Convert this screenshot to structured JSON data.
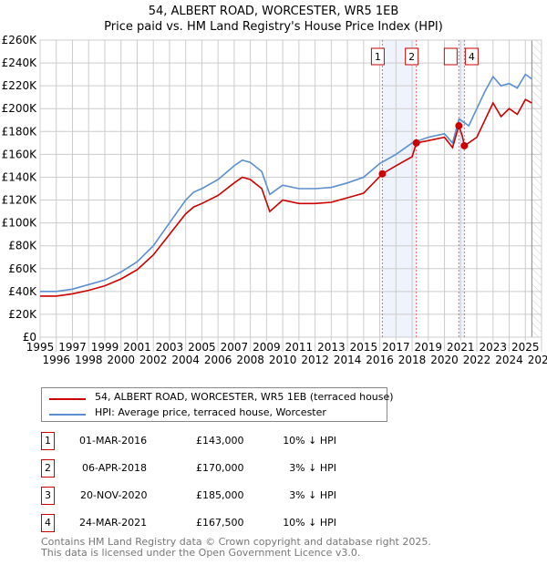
{
  "title": "54, ALBERT ROAD, WORCESTER, WR5 1EB",
  "subtitle": "Price paid vs. HM Land Registry's House Price Index (HPI)",
  "legend": {
    "property": "54, ALBERT ROAD, WORCESTER, WR5 1EB (terraced house)",
    "hpi": "HPI: Average price, terraced house, Worcester"
  },
  "sales": [
    {
      "n": "1",
      "date": "01-MAR-2016",
      "price": "£143,000",
      "hpi": "10% ↓ HPI",
      "x": 2016.16,
      "y": 143000
    },
    {
      "n": "2",
      "date": "06-APR-2018",
      "price": "£170,000",
      "hpi": "3% ↓ HPI",
      "x": 2018.26,
      "y": 170000
    },
    {
      "n": "3",
      "date": "20-NOV-2020",
      "price": "£185,000",
      "hpi": "3% ↓ HPI",
      "x": 2020.89,
      "y": 185000
    },
    {
      "n": "4",
      "date": "24-MAR-2021",
      "price": "£167,500",
      "hpi": "10% ↓ HPI",
      "x": 2021.23,
      "y": 167500
    }
  ],
  "footer": [
    "Contains HM Land Registry data © Crown copyright and database right 2025.",
    "This data is licensed under the Open Government Licence v3.0."
  ],
  "colors": {
    "property": "#cc0000",
    "hpi": "#5b8fd0"
  },
  "chart_data": {
    "type": "line",
    "xlim": [
      1995,
      2026
    ],
    "ylim": [
      0,
      260000
    ],
    "xticks": [
      "1995",
      "1996",
      "1997",
      "1998",
      "1999",
      "2000",
      "2001",
      "2002",
      "2003",
      "2004",
      "2005",
      "2006",
      "2007",
      "2008",
      "2009",
      "2010",
      "2011",
      "2012",
      "2013",
      "2014",
      "2015",
      "2016",
      "2017",
      "2018",
      "2019",
      "2020",
      "2021",
      "2022",
      "2023",
      "2024",
      "2025",
      "2026"
    ],
    "yticks": [
      "£0",
      "£20K",
      "£40K",
      "£60K",
      "£80K",
      "£100K",
      "£120K",
      "£140K",
      "£160K",
      "£180K",
      "£200K",
      "£220K",
      "£240K",
      "£260K"
    ],
    "data_end": 2025.4,
    "series": [
      {
        "name": "HPI",
        "x": [
          1995,
          1996,
          1997,
          1998,
          1999,
          2000,
          2001,
          2002,
          2003,
          2004,
          2004.5,
          2005,
          2006,
          2007,
          2007.5,
          2008,
          2008.7,
          2009.2,
          2010,
          2011,
          2012,
          2013,
          2014,
          2015,
          2016,
          2017,
          2018,
          2019,
          2020,
          2020.5,
          2020.9,
          2021.5,
          2022,
          2022.5,
          2023,
          2023.5,
          2024,
          2024.5,
          2025,
          2025.4
        ],
        "y": [
          40000,
          40000,
          42000,
          46000,
          50000,
          57000,
          66000,
          80000,
          100000,
          120000,
          127000,
          130000,
          138000,
          150000,
          155000,
          153000,
          145000,
          125000,
          133000,
          130000,
          130000,
          131000,
          135000,
          140000,
          152000,
          160000,
          170000,
          175000,
          178000,
          170000,
          191000,
          185000,
          200000,
          215000,
          228000,
          220000,
          222000,
          218000,
          230000,
          226000
        ]
      },
      {
        "name": "54, ALBERT ROAD",
        "x": [
          1995,
          1996,
          1997,
          1998,
          1999,
          2000,
          2001,
          2002,
          2003,
          2004,
          2004.5,
          2005,
          2006,
          2007,
          2007.5,
          2008,
          2008.7,
          2009.2,
          2010,
          2011,
          2012,
          2013,
          2014,
          2015,
          2016.16,
          2017,
          2018,
          2018.26,
          2019,
          2020,
          2020.5,
          2020.89,
          2021.1,
          2021.23,
          2022,
          2022.5,
          2023,
          2023.5,
          2024,
          2024.5,
          2025,
          2025.4
        ],
        "y": [
          36000,
          36000,
          38000,
          41000,
          45000,
          51000,
          59000,
          72000,
          90000,
          108000,
          114000,
          117000,
          124000,
          135000,
          140000,
          138000,
          130000,
          110000,
          120000,
          117000,
          117000,
          118000,
          122000,
          126000,
          143000,
          150000,
          158000,
          170000,
          172000,
          175000,
          166000,
          185000,
          176000,
          167500,
          175000,
          190000,
          205000,
          193000,
          200000,
          195000,
          208000,
          205000
        ]
      }
    ]
  }
}
